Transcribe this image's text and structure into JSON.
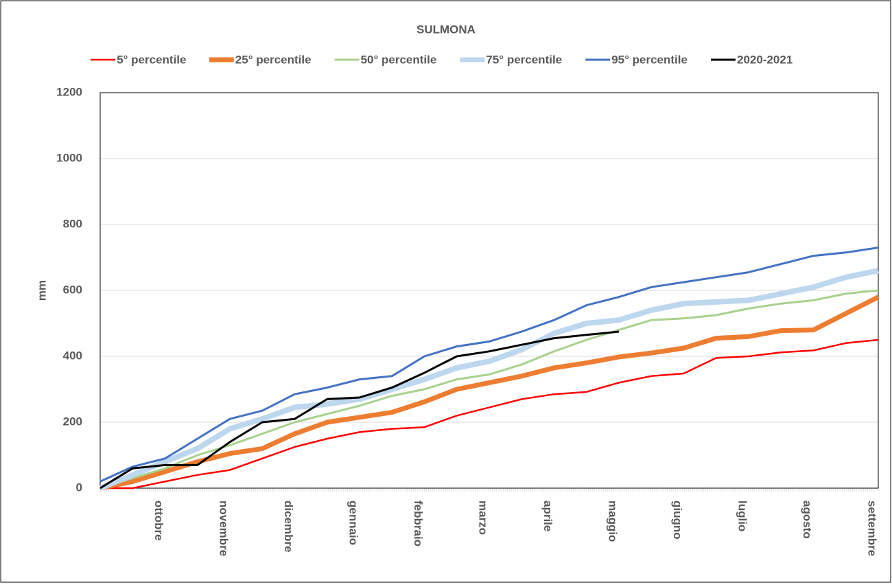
{
  "chart_data": {
    "type": "line",
    "title": "SULMONA",
    "y_label": "mm",
    "categories": [
      null,
      null,
      "ottobre",
      null,
      "novembre",
      null,
      "dicembre",
      null,
      "gennaio",
      null,
      "febbraio",
      null,
      "marzo",
      null,
      "aprile",
      null,
      "maggio",
      null,
      "giugno",
      null,
      "luglio",
      null,
      "agosto",
      null,
      "settembre"
    ],
    "series": [
      {
        "name": "5° percentile",
        "color": "#ff0000",
        "width": 2.5,
        "values": [
          0,
          0,
          20,
          40,
          55,
          90,
          125,
          150,
          170,
          180,
          185,
          220,
          245,
          270,
          285,
          292,
          320,
          340,
          348,
          395,
          400,
          412,
          418,
          440,
          450
        ]
      },
      {
        "name": "25° percentile",
        "color": "#ed7d31",
        "width": 7,
        "values": [
          0,
          20,
          50,
          80,
          105,
          120,
          165,
          200,
          215,
          230,
          262,
          300,
          320,
          340,
          365,
          380,
          398,
          410,
          425,
          455,
          460,
          478,
          480,
          530,
          580
        ]
      },
      {
        "name": "50° percentile",
        "color": "#a9d18e",
        "width": 3,
        "values": [
          0,
          30,
          60,
          100,
          130,
          165,
          200,
          225,
          250,
          280,
          300,
          330,
          345,
          375,
          415,
          450,
          480,
          510,
          515,
          525,
          545,
          560,
          570,
          590,
          600
        ]
      },
      {
        "name": "75° percentile",
        "color": "#bdd7ee",
        "width": 8,
        "values": [
          0,
          40,
          80,
          120,
          180,
          210,
          245,
          255,
          270,
          300,
          330,
          365,
          385,
          420,
          470,
          500,
          510,
          540,
          560,
          565,
          570,
          590,
          610,
          640,
          660
        ]
      },
      {
        "name": "95° percentile",
        "color": "#4472c4",
        "width": 3,
        "values": [
          20,
          65,
          90,
          150,
          210,
          235,
          285,
          305,
          330,
          340,
          400,
          430,
          445,
          475,
          510,
          555,
          580,
          610,
          625,
          640,
          655,
          680,
          705,
          715,
          730
        ]
      },
      {
        "name": "2020-2021",
        "color": "#000000",
        "width": 3,
        "values": [
          0,
          60,
          70,
          70,
          140,
          200,
          210,
          270,
          275,
          305,
          350,
          400,
          415,
          435,
          455,
          465,
          475,
          null,
          null,
          null,
          null,
          null,
          null,
          null,
          null
        ]
      }
    ],
    "ylim": [
      0,
      1200
    ],
    "yticks": [
      0,
      200,
      400,
      600,
      800,
      1000,
      1200
    ],
    "grid": true,
    "legend": "top"
  }
}
